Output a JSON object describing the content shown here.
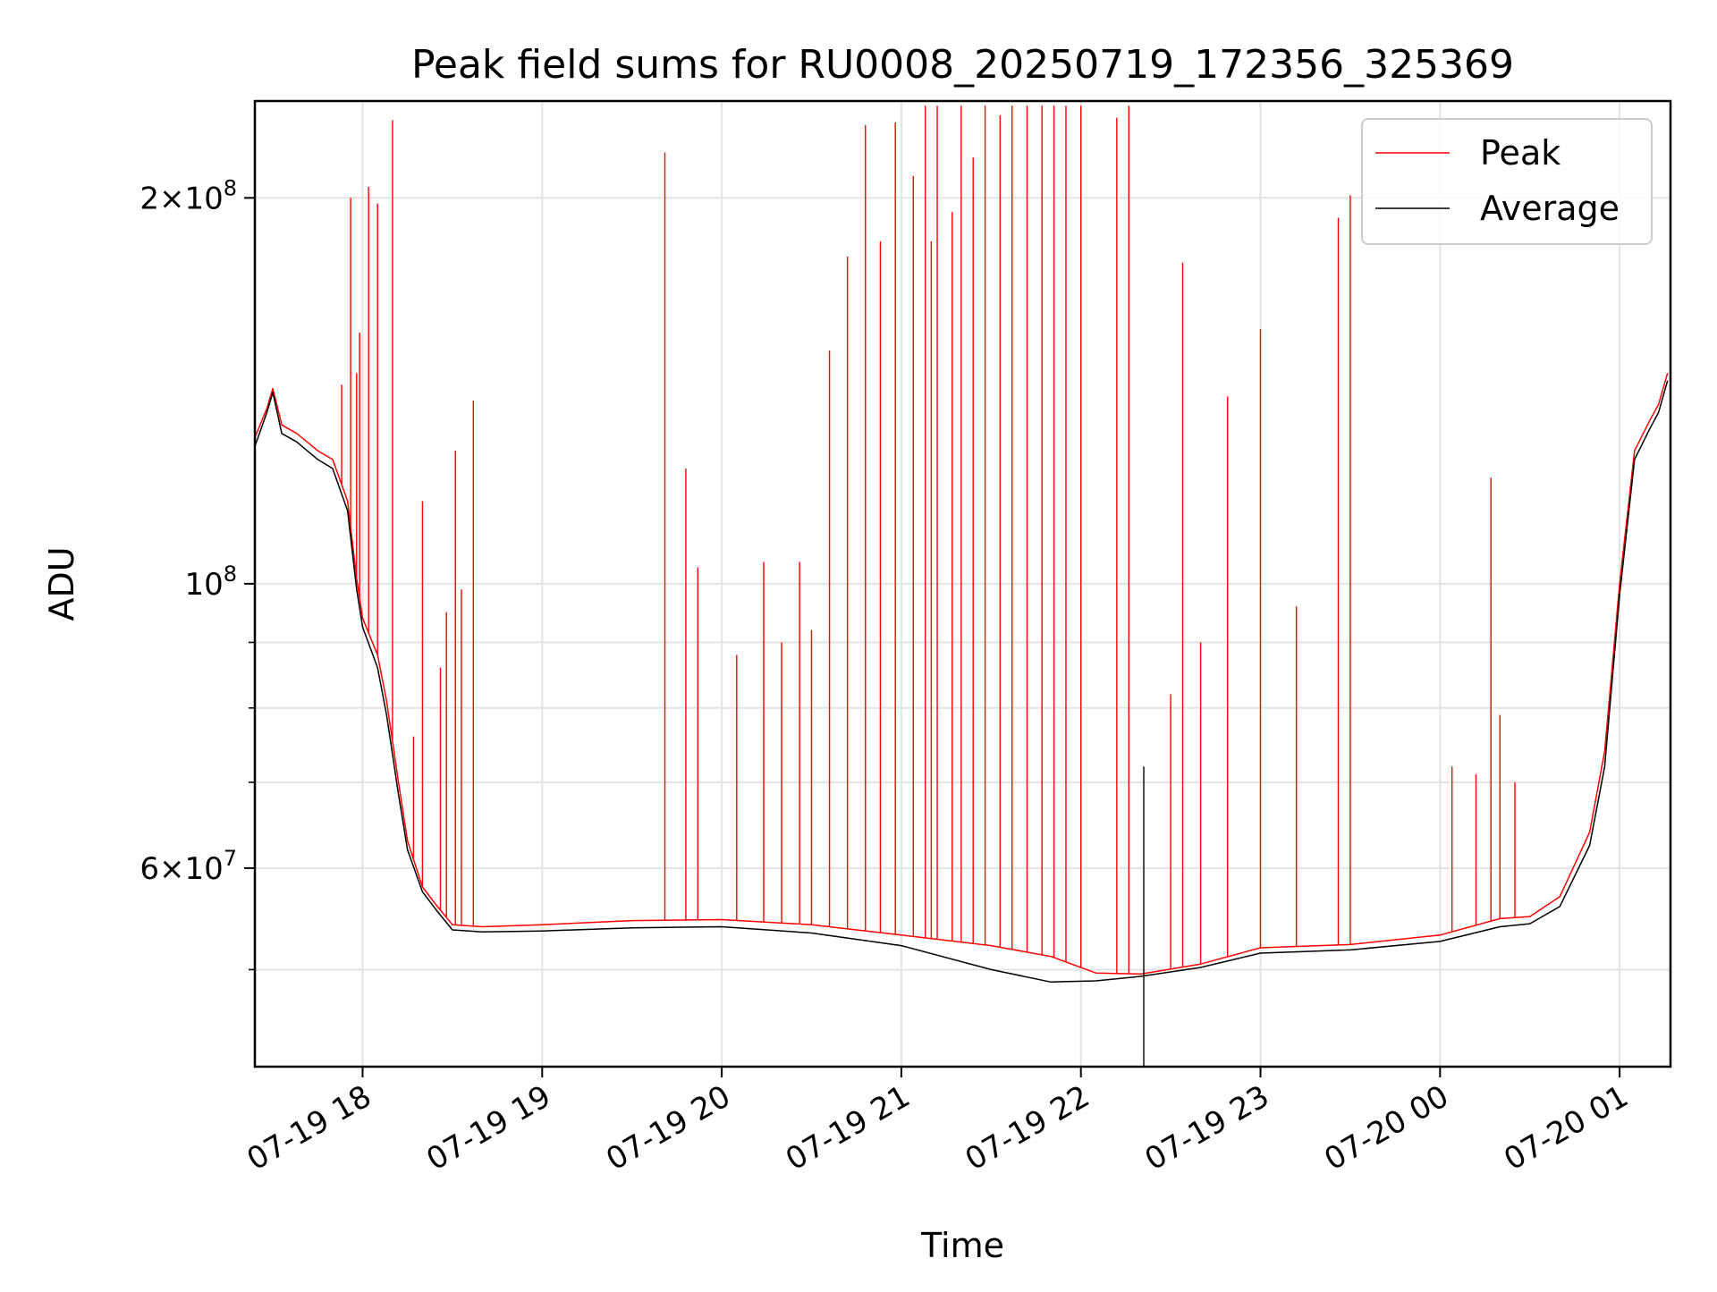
{
  "chart_data": {
    "type": "line",
    "title": "Peak field sums for RU0008_20250719_172356_325369",
    "xlabel": "Time",
    "ylabel": "ADU",
    "yscale": "log",
    "ylim": [
      42000000,
      238000000
    ],
    "xlim": [
      "07-19 17:24",
      "07-20 01:17"
    ],
    "grid": true,
    "legend_position": "top-right",
    "x_ticks": [
      "07-19 18",
      "07-19 19",
      "07-19 20",
      "07-19 21",
      "07-19 22",
      "07-19 23",
      "07-20 00",
      "07-20 01"
    ],
    "y_ticks": [
      {
        "value": 60000000,
        "label": "6 × 10^7",
        "mantissa": "6",
        "exp": "7"
      },
      {
        "value": 100000000,
        "label": "10^8",
        "mantissa": "",
        "exp": "8"
      },
      {
        "value": 200000000,
        "label": "2 × 10^8",
        "mantissa": "2",
        "exp": "8"
      }
    ],
    "y_minor_ticks": [
      50000000,
      70000000,
      80000000,
      90000000
    ],
    "series": [
      {
        "name": "Peak",
        "color": "#ff0000",
        "baseline": [
          [
            "07-19 17:24",
            130000000
          ],
          [
            "07-19 17:28",
            137000000
          ],
          [
            "07-19 17:30",
            142000000
          ],
          [
            "07-19 17:33",
            133000000
          ],
          [
            "07-19 17:38",
            131000000
          ],
          [
            "07-19 17:45",
            127000000
          ],
          [
            "07-19 17:50",
            125000000
          ],
          [
            "07-19 17:55",
            116000000
          ],
          [
            "07-19 17:58",
            101000000
          ],
          [
            "07-19 18:00",
            94000000
          ],
          [
            "07-19 18:05",
            88000000
          ],
          [
            "07-19 18:08",
            81000000
          ],
          [
            "07-19 18:12",
            70000000
          ],
          [
            "07-19 18:15",
            63000000
          ],
          [
            "07-19 18:20",
            58000000
          ],
          [
            "07-19 18:25",
            56000000
          ],
          [
            "07-19 18:30",
            54200000
          ],
          [
            "07-19 18:40",
            54000000
          ],
          [
            "07-19 19:00",
            54200000
          ],
          [
            "07-19 19:30",
            54600000
          ],
          [
            "07-19 20:00",
            54700000
          ],
          [
            "07-19 20:30",
            54200000
          ],
          [
            "07-19 21:00",
            53200000
          ],
          [
            "07-19 21:30",
            52200000
          ],
          [
            "07-19 21:50",
            51200000
          ],
          [
            "07-19 22:05",
            49700000
          ],
          [
            "07-19 22:20",
            49600000
          ],
          [
            "07-19 22:40",
            50500000
          ],
          [
            "07-19 23:00",
            52000000
          ],
          [
            "07-19 23:30",
            52300000
          ],
          [
            "07-20 00:00",
            53200000
          ],
          [
            "07-20 00:20",
            54800000
          ],
          [
            "07-20 00:30",
            55000000
          ],
          [
            "07-20 00:40",
            57000000
          ],
          [
            "07-20 00:50",
            64000000
          ],
          [
            "07-20 00:55",
            74000000
          ],
          [
            "07-20 01:00",
            100000000
          ],
          [
            "07-20 01:05",
            127000000
          ],
          [
            "07-20 01:10",
            134000000
          ],
          [
            "07-20 01:13",
            138000000
          ],
          [
            "07-20 01:16",
            146000000
          ]
        ],
        "spikes": [
          [
            "07-19 17:53",
            143000000
          ],
          [
            "07-19 17:56",
            200000000
          ],
          [
            "07-19 17:58",
            146000000
          ],
          [
            "07-19 17:59",
            157000000
          ],
          [
            "07-19 18:02",
            204000000
          ],
          [
            "07-19 18:05",
            198000000
          ],
          [
            "07-19 18:10",
            230000000
          ],
          [
            "07-19 18:17",
            76000000
          ],
          [
            "07-19 18:20",
            116000000
          ],
          [
            "07-19 18:26",
            86000000
          ],
          [
            "07-19 18:28",
            95000000
          ],
          [
            "07-19 18:31",
            127000000
          ],
          [
            "07-19 18:33",
            99000000
          ],
          [
            "07-19 18:37",
            139000000
          ],
          [
            "07-19 19:41",
            217000000
          ],
          [
            "07-19 19:48",
            123000000
          ],
          [
            "07-19 19:52",
            103000000
          ],
          [
            "07-19 20:05",
            88000000
          ],
          [
            "07-19 20:14",
            104000000
          ],
          [
            "07-19 20:20",
            90000000
          ],
          [
            "07-19 20:26",
            104000000
          ],
          [
            "07-19 20:30",
            92000000
          ],
          [
            "07-19 20:36",
            152000000
          ],
          [
            "07-19 20:42",
            180000000
          ],
          [
            "07-19 20:48",
            228000000
          ],
          [
            "07-19 20:53",
            185000000
          ],
          [
            "07-19 20:58",
            229000000
          ],
          [
            "07-19 21:04",
            208000000
          ],
          [
            "07-19 21:08",
            236000000
          ],
          [
            "07-19 21:10",
            185000000
          ],
          [
            "07-19 21:12",
            236000000
          ],
          [
            "07-19 21:17",
            195000000
          ],
          [
            "07-19 21:20",
            236000000
          ],
          [
            "07-19 21:24",
            215000000
          ],
          [
            "07-19 21:28",
            236000000
          ],
          [
            "07-19 21:33",
            232000000
          ],
          [
            "07-19 21:37",
            236000000
          ],
          [
            "07-19 21:42",
            236000000
          ],
          [
            "07-19 21:47",
            236000000
          ],
          [
            "07-19 21:51",
            236000000
          ],
          [
            "07-19 21:55",
            236000000
          ],
          [
            "07-19 22:00",
            236000000
          ],
          [
            "07-19 22:12",
            231000000
          ],
          [
            "07-19 22:16",
            236000000
          ],
          [
            "07-19 22:30",
            82000000
          ],
          [
            "07-19 22:34",
            178000000
          ],
          [
            "07-19 22:40",
            90000000
          ],
          [
            "07-19 22:49",
            140000000
          ],
          [
            "07-19 23:00",
            158000000
          ],
          [
            "07-19 23:12",
            96000000
          ],
          [
            "07-19 23:26",
            193000000
          ],
          [
            "07-19 23:30",
            201000000
          ],
          [
            "07-20 00:04",
            72000000
          ],
          [
            "07-20 00:12",
            71000000
          ],
          [
            "07-20 00:17",
            121000000
          ],
          [
            "07-20 00:20",
            79000000
          ],
          [
            "07-20 00:25",
            70000000
          ]
        ]
      },
      {
        "name": "Average",
        "color": "#000000",
        "baseline": [
          [
            "07-19 17:24",
            128000000
          ],
          [
            "07-19 17:28",
            136000000
          ],
          [
            "07-19 17:30",
            141000000
          ],
          [
            "07-19 17:33",
            131000000
          ],
          [
            "07-19 17:38",
            129000000
          ],
          [
            "07-19 17:45",
            125000000
          ],
          [
            "07-19 17:50",
            123000000
          ],
          [
            "07-19 17:55",
            114000000
          ],
          [
            "07-19 17:58",
            99000000
          ],
          [
            "07-19 18:00",
            92500000
          ],
          [
            "07-19 18:05",
            86000000
          ],
          [
            "07-19 18:08",
            79000000
          ],
          [
            "07-19 18:12",
            68500000
          ],
          [
            "07-19 18:15",
            62000000
          ],
          [
            "07-19 18:20",
            57500000
          ],
          [
            "07-19 18:25",
            55500000
          ],
          [
            "07-19 18:30",
            53700000
          ],
          [
            "07-19 18:40",
            53500000
          ],
          [
            "07-19 19:00",
            53600000
          ],
          [
            "07-19 19:30",
            53900000
          ],
          [
            "07-19 20:00",
            54000000
          ],
          [
            "07-19 20:30",
            53400000
          ],
          [
            "07-19 21:00",
            52200000
          ],
          [
            "07-19 21:30",
            50000000
          ],
          [
            "07-19 21:50",
            48900000
          ],
          [
            "07-19 22:05",
            49000000
          ],
          [
            "07-19 22:20",
            49400000
          ],
          [
            "07-19 22:40",
            50200000
          ],
          [
            "07-19 23:00",
            51500000
          ],
          [
            "07-19 23:30",
            51800000
          ],
          [
            "07-20 00:00",
            52600000
          ],
          [
            "07-20 00:20",
            54000000
          ],
          [
            "07-20 00:30",
            54300000
          ],
          [
            "07-20 00:40",
            56000000
          ],
          [
            "07-20 00:50",
            62500000
          ],
          [
            "07-20 00:55",
            72000000
          ],
          [
            "07-20 01:00",
            98000000
          ],
          [
            "07-20 01:05",
            125000000
          ],
          [
            "07-20 01:10",
            132000000
          ],
          [
            "07-20 01:13",
            136000000
          ],
          [
            "07-20 01:16",
            144000000
          ]
        ],
        "spikes": [
          [
            "07-19 22:21",
            72000000
          ],
          [
            "07-19 22:21",
            42000000
          ]
        ]
      }
    ]
  }
}
